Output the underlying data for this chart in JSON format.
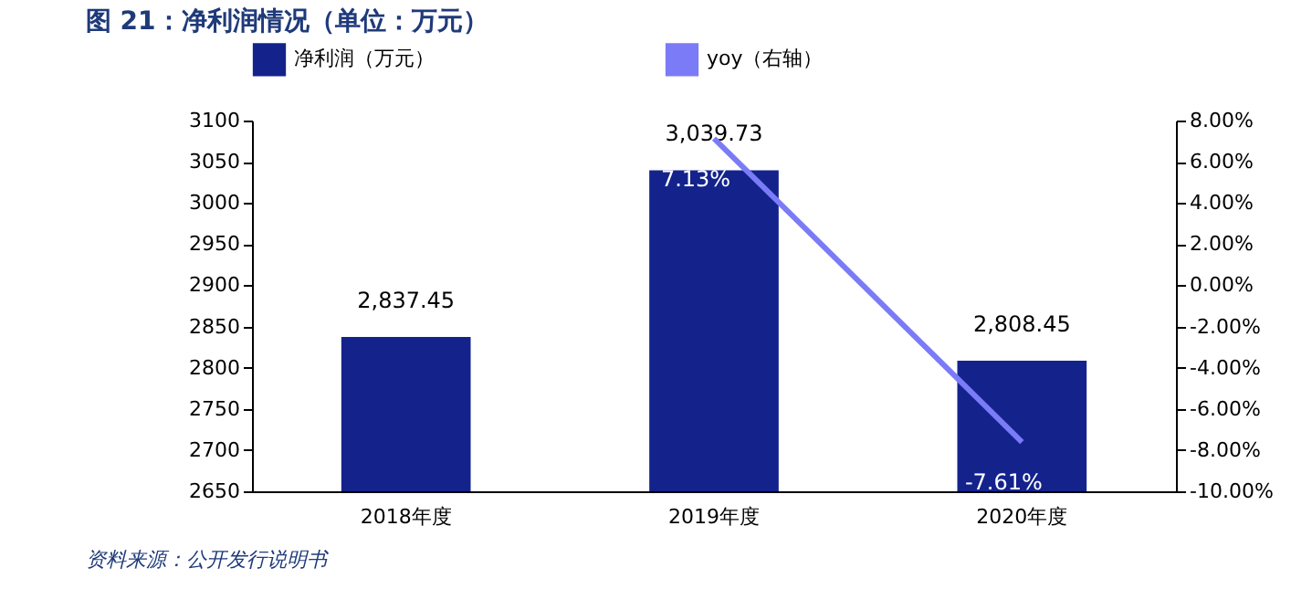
{
  "chart_data": {
    "type": "bar",
    "title": "图 21：净利润情况（单位：万元）",
    "categories": [
      "2018年度",
      "2019年度",
      "2020年度"
    ],
    "series": [
      {
        "name": "净利润（万元）",
        "type": "bar",
        "color": "#14238c",
        "values": [
          2837.45,
          3039.73,
          2808.45
        ],
        "value_labels": [
          "2,837.45",
          "3,039.73",
          "2,808.45"
        ]
      },
      {
        "name": "yoy（右轴）",
        "type": "line",
        "axis": "y2",
        "color": "#7b7bf7",
        "values": [
          null,
          7.13,
          -7.61
        ],
        "value_labels": [
          null,
          "7.13%",
          "-7.61%"
        ]
      }
    ],
    "ylim": [
      2650,
      3100
    ],
    "yticks": [
      2650,
      2700,
      2750,
      2800,
      2850,
      2900,
      2950,
      3000,
      3050,
      3100
    ],
    "y2lim": [
      -10,
      8
    ],
    "y2ticks": [
      {
        "value": -10,
        "label": "-10.00%"
      },
      {
        "value": -8,
        "label": "-8.00%"
      },
      {
        "value": -6,
        "label": "-6.00%"
      },
      {
        "value": -4,
        "label": "-4.00%"
      },
      {
        "value": -2,
        "label": "-2.00%"
      },
      {
        "value": 0,
        "label": "0.00%"
      },
      {
        "value": 2,
        "label": "2.00%"
      },
      {
        "value": 4,
        "label": "4.00%"
      },
      {
        "value": 6,
        "label": "6.00%"
      },
      {
        "value": 8,
        "label": "8.00%"
      }
    ],
    "legend": "top",
    "grid": false,
    "annotations": [
      "资料来源：公开发行说明书"
    ]
  }
}
